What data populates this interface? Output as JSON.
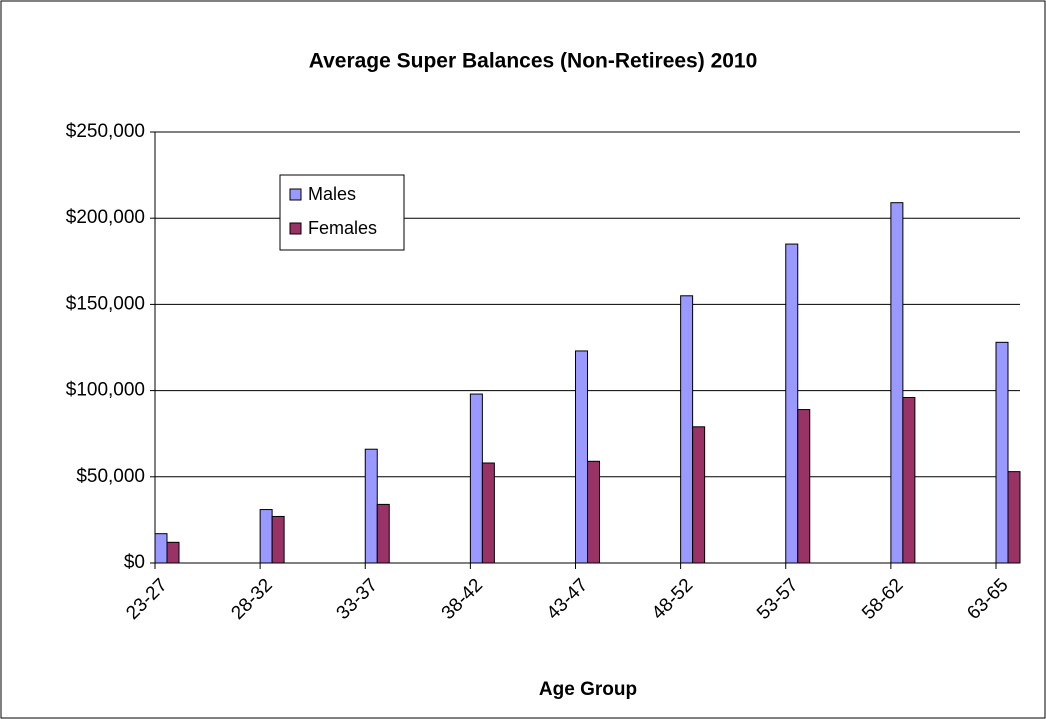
{
  "chart_data": {
    "type": "bar",
    "title": "Average Super Balances (Non-Retirees) 2010",
    "x_label": "Age Group",
    "categories": [
      "23-27",
      "28-32",
      "33-37",
      "38-42",
      "43-47",
      "48-52",
      "53-57",
      "58-62",
      "63-65"
    ],
    "series": [
      {
        "name": "Males",
        "color": "#9999ff",
        "values": [
          17000,
          31000,
          66000,
          98000,
          123000,
          155000,
          185000,
          209000,
          128000
        ]
      },
      {
        "name": "Females",
        "color": "#993366",
        "values": [
          12000,
          27000,
          34000,
          58000,
          59000,
          79000,
          89000,
          96000,
          53000
        ]
      }
    ],
    "ylim": [
      0,
      250000
    ],
    "yticks": [
      {
        "value": 0,
        "label": "$0"
      },
      {
        "value": 50000,
        "label": "$50,000"
      },
      {
        "value": 100000,
        "label": "$100,000"
      },
      {
        "value": 150000,
        "label": "$150,000"
      },
      {
        "value": 200000,
        "label": "$200,000"
      },
      {
        "value": 250000,
        "label": "$250,000"
      }
    ],
    "grid": true,
    "legend": "upper-left"
  }
}
